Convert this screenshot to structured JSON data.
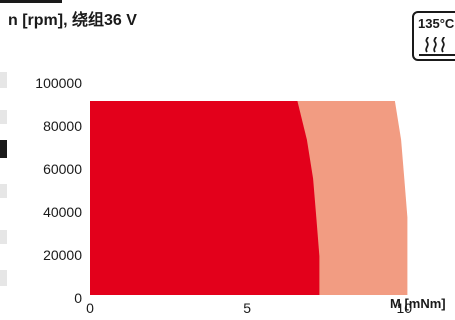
{
  "header": {
    "title": "n [rpm], 绕组36 V"
  },
  "badge": {
    "label": "135°C",
    "icon": "autoclave-heat-icon"
  },
  "colors": {
    "continuous": "#e3001b",
    "intermittent": "#f29c82",
    "text": "#1a1a1a"
  },
  "chart_data": {
    "type": "area",
    "title": "n [rpm], 绕组36 V",
    "xlabel": "M [mNm]",
    "ylabel": "n [rpm]",
    "xlim": [
      0,
      10.5
    ],
    "ylim": [
      0,
      90000
    ],
    "xticks": [
      0,
      5,
      10
    ],
    "yticks": [
      0,
      20000,
      40000,
      60000,
      80000,
      100000
    ],
    "grid": false,
    "legend": "none",
    "series": [
      {
        "name": "",
        "role": "continuous",
        "x": [
          6.6,
          6.9,
          7.1,
          7.2,
          7.3,
          7.3
        ],
        "y": [
          90000,
          72000,
          54000,
          36000,
          18000,
          0
        ]
      },
      {
        "name": "",
        "role": "intermittent",
        "x": [
          9.7,
          9.9,
          10.0,
          10.1,
          10.1,
          10.1
        ],
        "y": [
          90000,
          72000,
          54000,
          36000,
          18000,
          0
        ]
      }
    ]
  }
}
